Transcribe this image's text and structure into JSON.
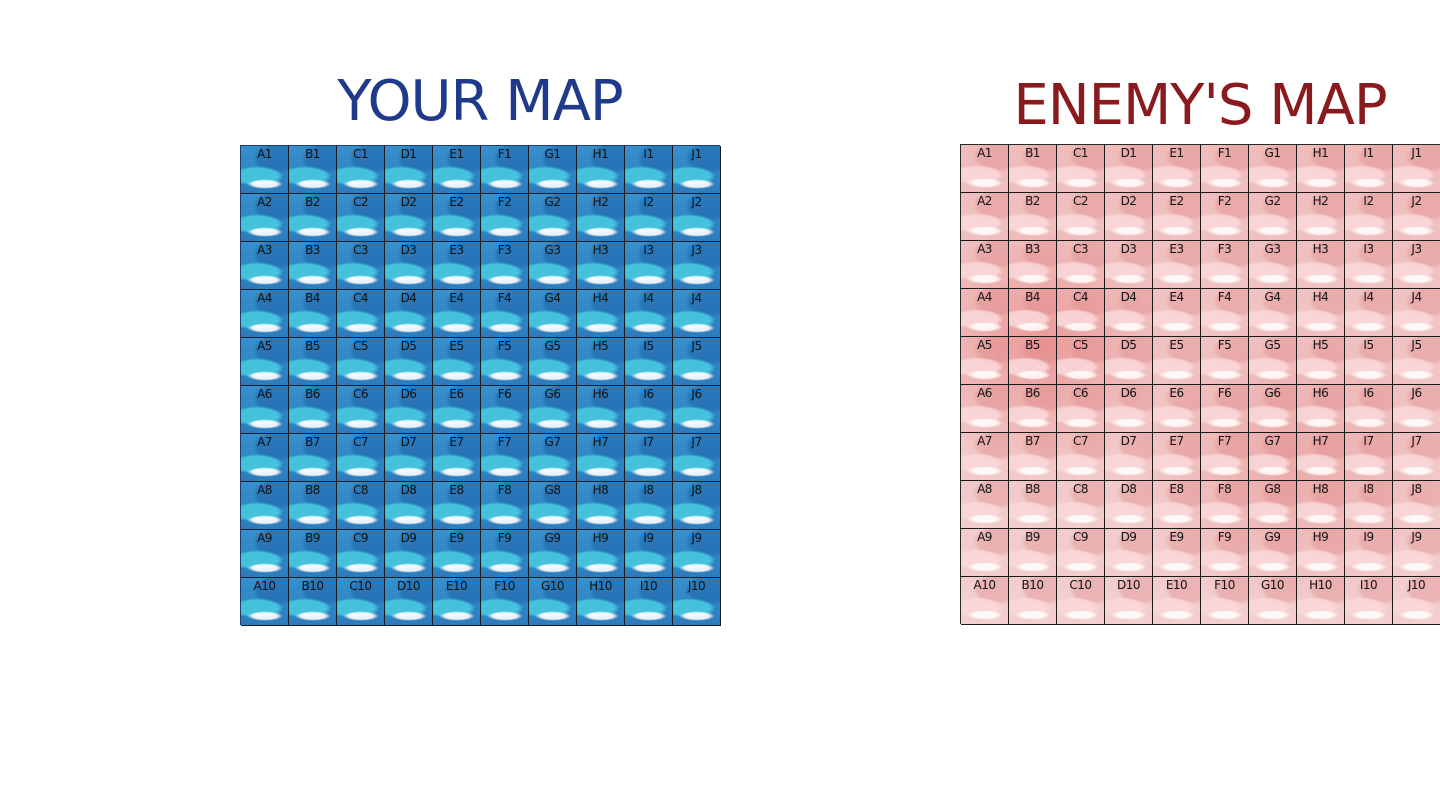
{
  "your_map": {
    "title": "YOUR MAP",
    "title_color": "#1f3a8a",
    "columns": [
      "A",
      "B",
      "C",
      "D",
      "E",
      "F",
      "G",
      "H",
      "I",
      "J"
    ],
    "rows": [
      "1",
      "2",
      "3",
      "4",
      "5",
      "6",
      "7",
      "8",
      "9",
      "10"
    ],
    "tile_theme": "ocean-waves-blue"
  },
  "enemy_map": {
    "title": "ENEMY'S MAP",
    "title_color": "#8b1a1f",
    "columns": [
      "A",
      "B",
      "C",
      "D",
      "E",
      "F",
      "G",
      "H",
      "I",
      "J"
    ],
    "rows": [
      "1",
      "2",
      "3",
      "4",
      "5",
      "6",
      "7",
      "8",
      "9",
      "10"
    ],
    "tile_theme": "ocean-waves-red"
  }
}
